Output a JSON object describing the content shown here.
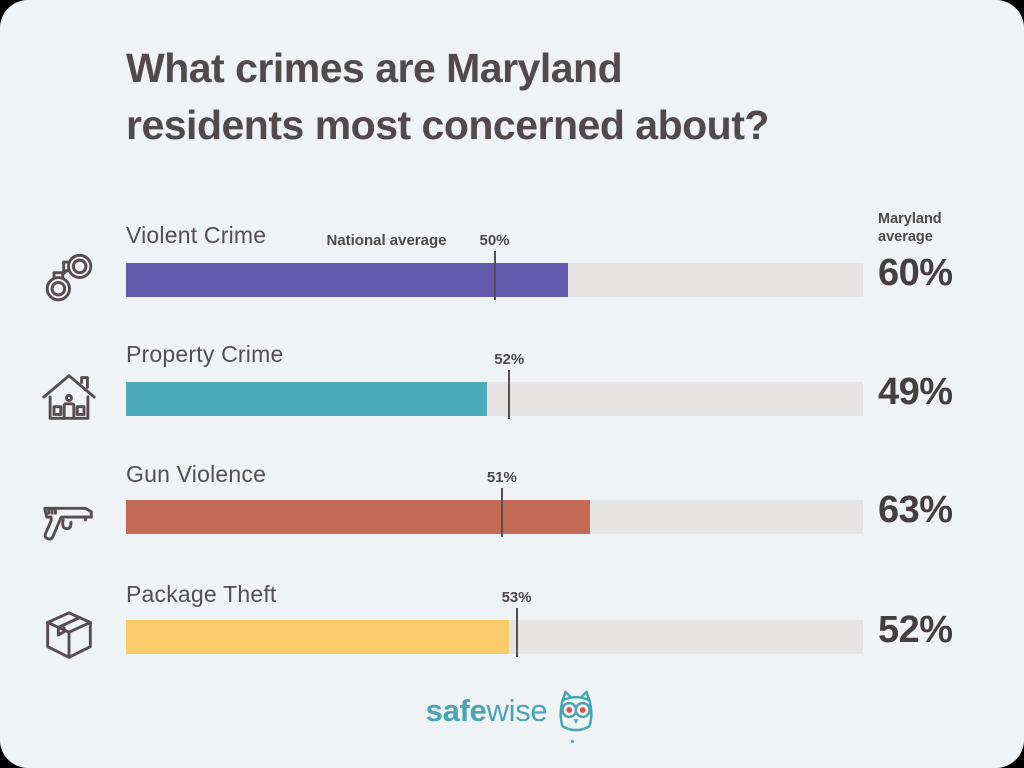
{
  "title": {
    "line1": "What crimes are Maryland",
    "line2": "residents most concerned about?",
    "full": "What crimes are Maryland residents most concerned about?"
  },
  "legend": {
    "national_label": "National average",
    "maryland_label": "Maryland average"
  },
  "rows": [
    {
      "label": "Violent Crime",
      "icon": "handcuffs-icon",
      "national_text": "50%",
      "maryland_text": "60%",
      "national_pct": 50,
      "maryland_pct": 60,
      "color": "#6459ac"
    },
    {
      "label": "Property Crime",
      "icon": "house-icon",
      "national_text": "52%",
      "maryland_text": "49%",
      "national_pct": 52,
      "maryland_pct": 49,
      "color": "#4babb9"
    },
    {
      "label": "Gun Violence",
      "icon": "gun-icon",
      "national_text": "51%",
      "maryland_text": "63%",
      "national_pct": 51,
      "maryland_pct": 63,
      "color": "#c26a56"
    },
    {
      "label": "Package Theft",
      "icon": "package-icon",
      "national_text": "53%",
      "maryland_text": "52%",
      "national_pct": 53,
      "maryland_pct": 52,
      "color": "#f9cb6b"
    }
  ],
  "footer": {
    "brand_bold": "safe",
    "brand_light": "wise"
  },
  "colors": {
    "background": "#eff3f6",
    "track": "#e5e4e3",
    "tick": "#55504f",
    "text_dark": "#514a4b",
    "brand_teal": "#49a5b2",
    "owl_eye_red": "#d9534f"
  },
  "chart_data": {
    "type": "bar",
    "orientation": "horizontal",
    "title": "What crimes are Maryland residents most concerned about?",
    "categories": [
      "Violent Crime",
      "Property Crime",
      "Gun Violence",
      "Package Theft"
    ],
    "series": [
      {
        "name": "Maryland average",
        "values": [
          60,
          49,
          63,
          52
        ]
      },
      {
        "name": "National average",
        "values": [
          50,
          52,
          51,
          53
        ]
      }
    ],
    "unit": "%",
    "xlim": [
      0,
      100
    ],
    "grid": false,
    "legend_position": "inline",
    "bar_colors": [
      "#6459ac",
      "#4babb9",
      "#c26a56",
      "#f9cb6b"
    ]
  }
}
